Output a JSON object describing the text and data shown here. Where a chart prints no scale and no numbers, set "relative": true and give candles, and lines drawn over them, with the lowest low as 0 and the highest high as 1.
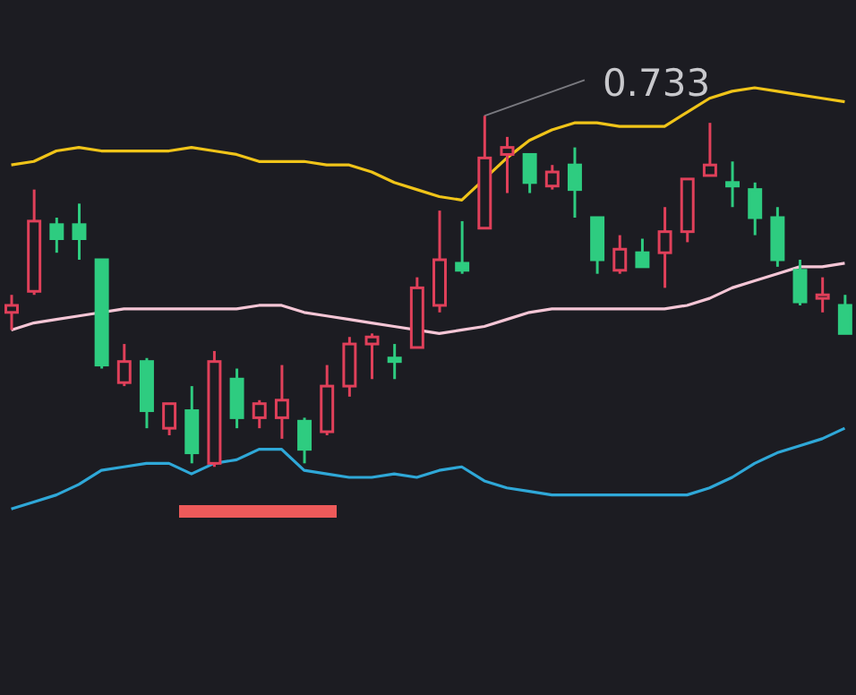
{
  "chart_data": {
    "type": "candlestick",
    "relative": true,
    "categories": [
      null,
      null,
      null,
      null,
      null,
      null,
      null,
      null,
      null,
      null,
      null,
      null,
      null,
      null,
      null,
      null,
      null,
      null,
      null,
      null,
      null,
      null,
      null,
      null,
      null,
      null,
      null,
      null,
      null,
      null,
      null,
      null,
      null,
      null,
      null,
      null,
      null,
      null
    ],
    "ohlc": [
      [
        0.44,
        0.49,
        0.39,
        0.46
      ],
      [
        0.5,
        0.79,
        0.49,
        0.7
      ],
      [
        0.69,
        0.71,
        0.61,
        0.65
      ],
      [
        0.69,
        0.75,
        0.59,
        0.65
      ],
      [
        0.59,
        0.59,
        0.28,
        0.29
      ],
      [
        0.24,
        0.35,
        0.23,
        0.3
      ],
      [
        0.3,
        0.31,
        0.11,
        0.16
      ],
      [
        0.11,
        0.18,
        0.09,
        0.18
      ],
      [
        0.16,
        0.23,
        0.01,
        0.04
      ],
      [
        0.01,
        0.33,
        0.0,
        0.3
      ],
      [
        0.25,
        0.28,
        0.11,
        0.14
      ],
      [
        0.14,
        0.19,
        0.11,
        0.18
      ],
      [
        0.14,
        0.29,
        0.08,
        0.19
      ],
      [
        0.13,
        0.14,
        0.01,
        0.05
      ],
      [
        0.1,
        0.29,
        0.09,
        0.23
      ],
      [
        0.23,
        0.37,
        0.2,
        0.35
      ],
      [
        0.35,
        0.38,
        0.25,
        0.37
      ],
      [
        0.31,
        0.35,
        0.25,
        0.3
      ],
      [
        0.34,
        0.54,
        0.34,
        0.51
      ],
      [
        0.46,
        0.73,
        0.44,
        0.59
      ],
      [
        0.58,
        0.7,
        0.55,
        0.56
      ],
      [
        0.68,
        1,
        0.68,
        0.88
      ],
      [
        0.89,
        0.94,
        0.78,
        0.91
      ],
      [
        0.89,
        0.89,
        0.78,
        0.81
      ],
      [
        0.8,
        0.86,
        0.79,
        0.84
      ],
      [
        0.86,
        0.91,
        0.71,
        0.79
      ],
      [
        0.71,
        0.71,
        0.55,
        0.59
      ],
      [
        0.56,
        0.66,
        0.55,
        0.62
      ],
      [
        0.61,
        0.65,
        0.57,
        0.57
      ],
      [
        0.61,
        0.74,
        0.51,
        0.67
      ],
      [
        0.67,
        0.82,
        0.64,
        0.82
      ],
      [
        0.83,
        0.98,
        0.83,
        0.86
      ],
      [
        0.81,
        0.87,
        0.74,
        0.8
      ],
      [
        0.79,
        0.81,
        0.66,
        0.71
      ],
      [
        0.71,
        0.74,
        0.57,
        0.59
      ],
      [
        0.56,
        0.59,
        0.46,
        0.47
      ],
      [
        0.48,
        0.54,
        0.44,
        0.49
      ],
      [
        0.46,
        0.49,
        0.38,
        0.38
      ]
    ],
    "colors": [
      "#e0405a",
      "#e0405a",
      "#2ecc80",
      "#2ecc80",
      "#2ecc80",
      "#e0405a",
      "#2ecc80",
      "#e0405a",
      "#2ecc80",
      "#e0405a",
      "#2ecc80",
      "#e0405a",
      "#e0405a",
      "#2ecc80",
      "#e0405a",
      "#e0405a",
      "#e0405a",
      "#2ecc80",
      "#e0405a",
      "#e0405a",
      "#2ecc80",
      "#e0405a",
      "#e0405a",
      "#2ecc80",
      "#e0405a",
      "#2ecc80",
      "#2ecc80",
      "#e0405a",
      "#2ecc80",
      "#e0405a",
      "#e0405a",
      "#e0405a",
      "#2ecc80",
      "#2ecc80",
      "#2ecc80",
      "#2ecc80",
      "#e0405a",
      "#2ecc80"
    ],
    "series": [
      {
        "type": "line",
        "color": "#f0c419",
        "values": [
          0.86,
          0.87,
          0.9,
          0.91,
          0.9,
          0.9,
          0.9,
          0.9,
          0.91,
          0.9,
          0.89,
          0.87,
          0.87,
          0.87,
          0.86,
          0.86,
          0.84,
          0.81,
          0.79,
          0.77,
          0.76,
          0.82,
          0.88,
          0.93,
          0.96,
          0.98,
          0.98,
          0.97,
          0.97,
          0.97,
          1.01,
          1.05,
          1.07,
          1.08,
          1.07,
          1.06,
          1.05,
          1.04
        ]
      },
      {
        "type": "line",
        "color": "#f5c6d6",
        "values": [
          0.39,
          0.41,
          0.42,
          0.43,
          null,
          0.45,
          0.45,
          0.45,
          0.45,
          0.45,
          0.45,
          0.46,
          0.46,
          0.44,
          0.43,
          0.42,
          0.41,
          0.4,
          0.39,
          0.38,
          0.39,
          0.4,
          0.42,
          0.44,
          0.45,
          0.45,
          0.45,
          0.45,
          0.45,
          0.45,
          0.46,
          0.48,
          0.51,
          0.53,
          0.55,
          0.57,
          0.57,
          0.58
        ]
      },
      {
        "type": "line",
        "color": "#2fa8d8",
        "values": [
          -0.12,
          -0.1,
          -0.08,
          -0.05,
          -0.01,
          0.0,
          0.01,
          0.01,
          -0.02,
          0.01,
          0.02,
          0.05,
          0.05,
          -0.01,
          -0.02,
          -0.03,
          -0.03,
          -0.02,
          -0.03,
          -0.01,
          0.0,
          -0.04,
          -0.06,
          -0.07,
          -0.08,
          -0.08,
          -0.08,
          -0.08,
          -0.08,
          -0.08,
          -0.08,
          -0.06,
          -0.03,
          0.01,
          0.04,
          0.06,
          0.08,
          0.11
        ]
      }
    ],
    "annotations": [
      "0.733"
    ]
  }
}
